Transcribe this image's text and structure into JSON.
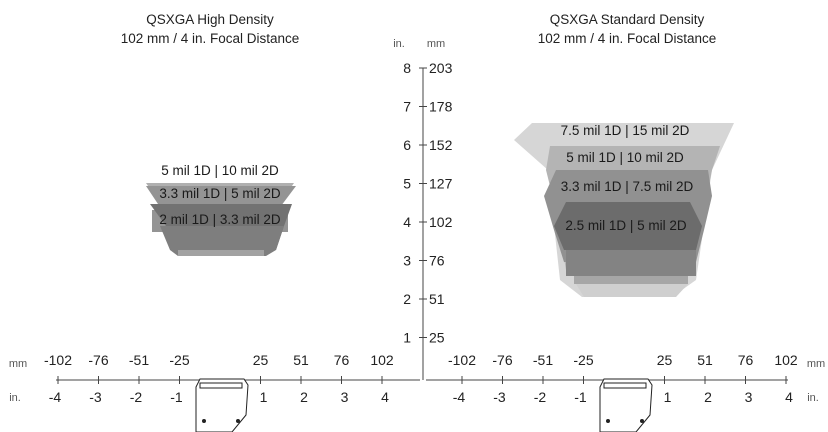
{
  "left_panel": {
    "title_line1": "QSXGA High Density",
    "title_line2": "102 mm / 4 in. Focal Distance",
    "zones": [
      {
        "label": "5 mil 1D | 10 mil 2D",
        "fill": "#b0b0b0"
      },
      {
        "label": "3.3 mil 1D | 5 mil 2D",
        "fill": "#8e8e8e"
      },
      {
        "label": "2 mil 1D | 3.3 mil 2D",
        "fill": "#707070"
      }
    ]
  },
  "right_panel": {
    "title_line1": "QSXGA Standard Density",
    "title_line2": "102 mm / 4 in. Focal Distance",
    "zones": [
      {
        "label": "7.5 mil 1D | 15 mil 2D",
        "fill": "#d6d6d6"
      },
      {
        "label": "5 mil 1D | 10 mil 2D",
        "fill": "#b4b4b4"
      },
      {
        "label": "3.3 mil 1D | 7.5 mil 2D",
        "fill": "#8f8f8f"
      },
      {
        "label": "2.5 mil 1D | 5 mil 2D",
        "fill": "#6c6c6c"
      }
    ]
  },
  "vertical_axis": {
    "unit_in": "in.",
    "unit_mm": "mm",
    "ticks": [
      {
        "in": "8",
        "mm": "203"
      },
      {
        "in": "7",
        "mm": "178"
      },
      {
        "in": "6",
        "mm": "152"
      },
      {
        "in": "5",
        "mm": "127"
      },
      {
        "in": "4",
        "mm": "102"
      },
      {
        "in": "3",
        "mm": "76"
      },
      {
        "in": "2",
        "mm": "51"
      },
      {
        "in": "1",
        "mm": "25"
      }
    ]
  },
  "horizontal_axis": {
    "unit_mm": "mm",
    "unit_in": "in.",
    "mm_neg": [
      "-102",
      "-76",
      "-51",
      "-25"
    ],
    "mm_pos": [
      "25",
      "51",
      "76",
      "102"
    ],
    "in_neg": [
      "-4",
      "-3",
      "-2",
      "-1"
    ],
    "in_pos": [
      "1",
      "2",
      "3",
      "4"
    ]
  }
}
